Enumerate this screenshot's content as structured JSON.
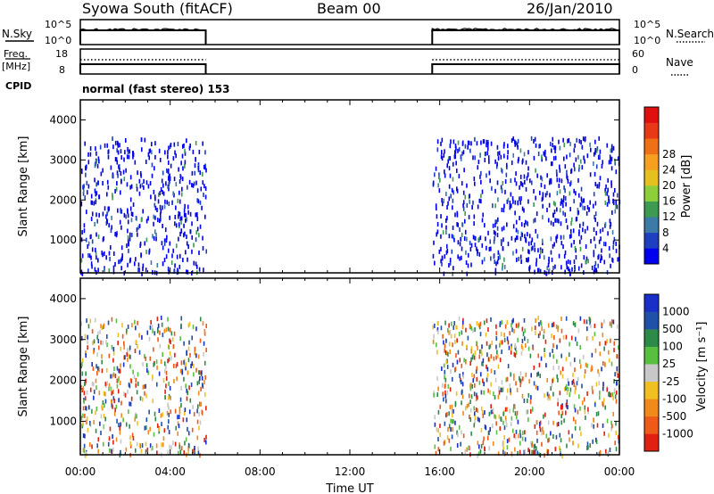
{
  "header": {
    "title": "Syowa South (fitACF)",
    "beam": "Beam 00",
    "date": "26/Jan/2010"
  },
  "status_panels": {
    "nsky_label": "N.Sky",
    "nsearch_label": "N.Search",
    "noise_ticks": [
      "10^5",
      "10^0"
    ],
    "freq_label": "Freq.",
    "freq_unit": "[MHz]",
    "freq_ticks": [
      "18",
      "8"
    ],
    "nave_label": "Nave",
    "nave_ticks": [
      "60",
      "0"
    ],
    "cpid_label": "CPID",
    "cpid_text": "normal (fast stereo) 153"
  },
  "chart_data": [
    {
      "type": "heatmap",
      "title": "",
      "xlabel": "Time UT",
      "ylabel": "Slant Range [km]",
      "x_ticks": [
        "00:00",
        "04:00",
        "08:00",
        "12:00",
        "16:00",
        "20:00",
        "00:00"
      ],
      "y_ticks": [
        1000,
        2000,
        3000,
        4000
      ],
      "ylim": [
        180,
        4500
      ],
      "colorbar": {
        "label": "Power [dB]",
        "ticks": [
          4,
          8,
          12,
          16,
          20,
          24,
          28
        ],
        "colors": [
          "#0000ee",
          "#1e40c0",
          "#3c7aa8",
          "#3e9a50",
          "#8ccf3a",
          "#e6c01e",
          "#f5a020",
          "#f07018",
          "#e83818",
          "#e01010"
        ]
      },
      "data_coverage": [
        {
          "start": "00:00",
          "end": "05:35",
          "range_km": [
            200,
            3600
          ]
        },
        {
          "start": "15:40",
          "end": "00:00",
          "range_km": [
            200,
            3600
          ]
        }
      ]
    },
    {
      "type": "heatmap",
      "title": "",
      "xlabel": "Time UT",
      "ylabel": "Slant Range [km]",
      "x_ticks": [
        "00:00",
        "04:00",
        "08:00",
        "12:00",
        "16:00",
        "20:00",
        "00:00"
      ],
      "y_ticks": [
        1000,
        2000,
        3000,
        4000
      ],
      "ylim": [
        180,
        4500
      ],
      "colorbar": {
        "label": "Velocity [m s⁻¹]",
        "tick_labels": [
          "1000",
          "500",
          "100",
          "25",
          "-25",
          "-100",
          "-500",
          "-1000"
        ],
        "colors": [
          "#1830c8",
          "#2050a8",
          "#2e8a48",
          "#58c040",
          "#c8c8c8",
          "#f0c020",
          "#f08a1a",
          "#ee5a18",
          "#e02010"
        ]
      },
      "data_coverage": [
        {
          "start": "00:00",
          "end": "05:35",
          "range_km": [
            200,
            3600
          ]
        },
        {
          "start": "15:40",
          "end": "00:00",
          "range_km": [
            200,
            3600
          ]
        }
      ]
    }
  ]
}
